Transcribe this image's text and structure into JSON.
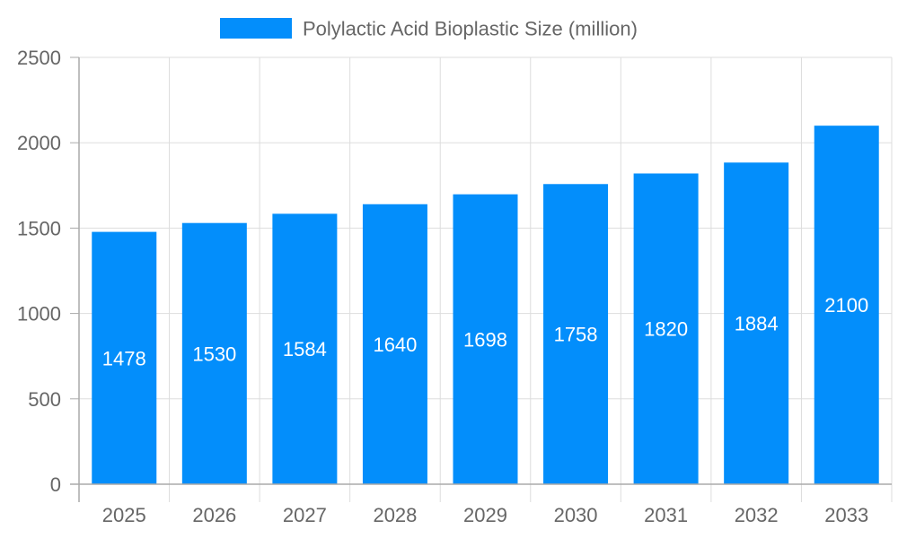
{
  "chart_data": {
    "type": "bar",
    "categories": [
      "2025",
      "2026",
      "2027",
      "2028",
      "2029",
      "2030",
      "2031",
      "2032",
      "2033"
    ],
    "series": [
      {
        "name": "Polylactic Acid Bioplastic Size (million)",
        "values": [
          1478,
          1530,
          1584,
          1640,
          1698,
          1758,
          1820,
          1884,
          2100
        ]
      }
    ],
    "ylim": [
      0,
      2500
    ],
    "yticks": [
      0,
      500,
      1000,
      1500,
      2000,
      2500
    ],
    "grid": true,
    "legend_position": "top",
    "data_labels": true,
    "colors": {
      "bar": "#038efb",
      "grid": "#dddddd",
      "axis": "#aaaaaa",
      "text": "#666666",
      "label": "#ffffff"
    }
  }
}
